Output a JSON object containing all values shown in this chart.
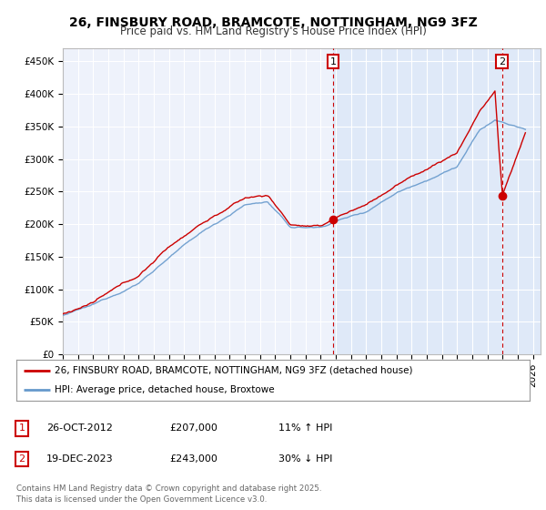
{
  "title": "26, FINSBURY ROAD, BRAMCOTE, NOTTINGHAM, NG9 3FZ",
  "subtitle": "Price paid vs. HM Land Registry's House Price Index (HPI)",
  "ylabel_ticks": [
    "£0",
    "£50K",
    "£100K",
    "£150K",
    "£200K",
    "£250K",
    "£300K",
    "£350K",
    "£400K",
    "£450K"
  ],
  "ytick_values": [
    0,
    50000,
    100000,
    150000,
    200000,
    250000,
    300000,
    350000,
    400000,
    450000
  ],
  "ylim": [
    0,
    470000
  ],
  "xlim_start": 1995.0,
  "xlim_end": 2026.5,
  "red_line_color": "#cc0000",
  "blue_line_color": "#6699cc",
  "shade_color": "#dde8f8",
  "background_color": "#eef2fb",
  "plot_background": "#eef2fb",
  "grid_color": "#ffffff",
  "marker1_x": 2012.82,
  "marker1_y": 207000,
  "marker2_x": 2023.96,
  "marker2_y": 243000,
  "legend_line1": "26, FINSBURY ROAD, BRAMCOTE, NOTTINGHAM, NG9 3FZ (detached house)",
  "legend_line2": "HPI: Average price, detached house, Broxtowe",
  "sale1_date": "26-OCT-2012",
  "sale1_price": "£207,000",
  "sale1_hpi": "11% ↑ HPI",
  "sale2_date": "19-DEC-2023",
  "sale2_price": "£243,000",
  "sale2_hpi": "30% ↓ HPI",
  "footnote": "Contains HM Land Registry data © Crown copyright and database right 2025.\nThis data is licensed under the Open Government Licence v3.0.",
  "title_fontsize": 10,
  "subtitle_fontsize": 8.5,
  "tick_fontsize": 7.5,
  "legend_fontsize": 7.5,
  "table_fontsize": 8
}
